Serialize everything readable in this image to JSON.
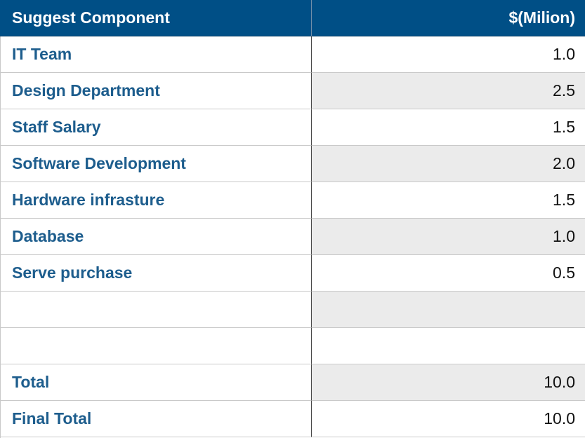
{
  "header": {
    "component": "Suggest Component",
    "amount": "$(Milion)"
  },
  "rows": [
    {
      "label": "IT Team",
      "value": "1.0"
    },
    {
      "label": "Design Department",
      "value": "2.5"
    },
    {
      "label": "Staff  Salary",
      "value": "1.5"
    },
    {
      "label": "Software Development",
      "value": "2.0"
    },
    {
      "label": "Hardware infrasture",
      "value": "1.5"
    },
    {
      "label": "Database",
      "value": "1.0"
    },
    {
      "label": "Serve purchase",
      "value": "0.5"
    },
    {
      "label": "",
      "value": ""
    },
    {
      "label": "",
      "value": ""
    },
    {
      "label": "Total",
      "value": "10.0"
    },
    {
      "label": "Final Total",
      "value": "10.0"
    }
  ],
  "colors": {
    "header_bg": "#004f86",
    "label_text": "#1d5d8d",
    "shade": "#ebebeb"
  }
}
